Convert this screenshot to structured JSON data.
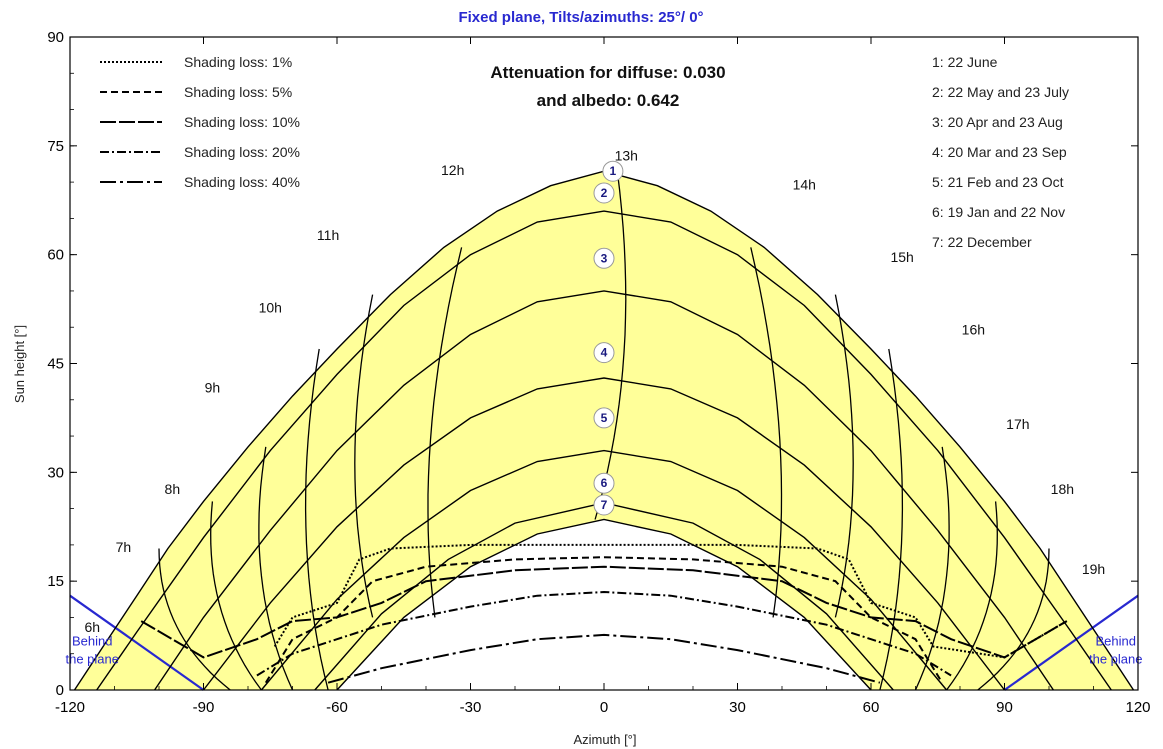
{
  "chart_data": {
    "type": "line",
    "title": "Fixed plane, Tilts/azimuths: 25°/ 0°",
    "xlabel": "Azimuth [°]",
    "ylabel": "Sun height [°]",
    "xlim": [
      -120,
      120
    ],
    "ylim": [
      0,
      90
    ],
    "x_ticks": [
      "-120",
      "-90",
      "-60",
      "-30",
      "0",
      "30",
      "60",
      "90",
      "120"
    ],
    "y_ticks": [
      "0",
      "15",
      "30",
      "45",
      "60",
      "75",
      "90"
    ],
    "annotation": [
      "Attenuation for diffuse: 0.030",
      "and albedo: 0.642"
    ],
    "legend": {
      "placement": "top-left",
      "items": [
        {
          "label": "Shading loss: 1%",
          "dash": "2,2"
        },
        {
          "label": "Shading loss: 5%",
          "dash": "7,4"
        },
        {
          "label": "Shading loss: 10%",
          "dash": "16,3"
        },
        {
          "label": "Shading loss: 20%",
          "dash": "9,3,2,3"
        },
        {
          "label": "Shading loss: 40%",
          "dash": "16,4,3,4"
        }
      ]
    },
    "date_legend": {
      "placement": "top-right",
      "items": [
        "1: 22 June",
        "2: 22 May and 23 July",
        "3: 20 Apr and 23 Aug",
        "4: 20 Mar and 23 Sep",
        "5: 21 Feb and 23 Oct",
        "6: 19 Jan and 22 Nov",
        "7: 22 December"
      ]
    },
    "sun_paths": [
      {
        "marker": "1",
        "x": [
          -119,
          -112,
          -105,
          -98,
          -90,
          -80,
          -70,
          -60,
          -48,
          -36,
          -24,
          -12,
          0,
          12,
          24,
          36,
          48,
          60,
          70,
          80,
          90,
          98,
          105,
          112,
          119
        ],
        "y": [
          0,
          6.5,
          13,
          19.5,
          26,
          33.5,
          40.5,
          47,
          54.5,
          61,
          66,
          69.5,
          71.5,
          69.5,
          66,
          61,
          54.5,
          47,
          40.5,
          33.5,
          26,
          19.5,
          13,
          6.5,
          0
        ]
      },
      {
        "marker": "2",
        "x": [
          -114,
          -105,
          -90,
          -75,
          -60,
          -45,
          -30,
          -15,
          0,
          15,
          30,
          45,
          60,
          75,
          90,
          105,
          114
        ],
        "y": [
          0,
          8,
          21,
          33,
          43.5,
          53,
          60,
          64.5,
          66,
          64.5,
          60,
          53,
          43.5,
          33,
          21,
          8,
          0
        ]
      },
      {
        "marker": "3",
        "x": [
          -101,
          -90,
          -75,
          -60,
          -45,
          -30,
          -15,
          0,
          15,
          30,
          45,
          60,
          75,
          90,
          101
        ],
        "y": [
          0,
          10,
          22,
          33,
          42,
          49,
          53.5,
          55,
          53.5,
          49,
          42,
          33,
          22,
          10,
          0
        ]
      },
      {
        "marker": "4",
        "x": [
          -90,
          -75,
          -60,
          -45,
          -30,
          -15,
          0,
          15,
          30,
          45,
          60,
          75,
          90
        ],
        "y": [
          0,
          12,
          22.5,
          31,
          37.5,
          41.5,
          43,
          41.5,
          37.5,
          31,
          22.5,
          12,
          0
        ]
      },
      {
        "marker": "5",
        "x": [
          -77,
          -60,
          -45,
          -30,
          -15,
          0,
          15,
          30,
          45,
          60,
          77
        ],
        "y": [
          0,
          12.5,
          21,
          27.5,
          31.5,
          33,
          31.5,
          27.5,
          21,
          12.5,
          0
        ]
      },
      {
        "marker": "6",
        "x": [
          -65,
          -50,
          -35,
          -20,
          0,
          20,
          35,
          50,
          65
        ],
        "y": [
          0,
          10.5,
          18,
          23,
          25.8,
          23,
          18,
          10.5,
          0
        ]
      },
      {
        "marker": "7",
        "x": [
          -60,
          -45,
          -30,
          -15,
          0,
          15,
          30,
          45,
          60
        ],
        "y": [
          0,
          10,
          17,
          21.5,
          23.5,
          21.5,
          17,
          10,
          0
        ]
      }
    ],
    "markers": [
      {
        "label": "1",
        "x": 2,
        "y": 71.5
      },
      {
        "label": "2",
        "x": 0,
        "y": 68.5
      },
      {
        "label": "3",
        "x": 0,
        "y": 59.5
      },
      {
        "label": "4",
        "x": 0,
        "y": 46.5
      },
      {
        "label": "5",
        "x": 0,
        "y": 37.5
      },
      {
        "label": "6",
        "x": 0,
        "y": 28.5
      },
      {
        "label": "7",
        "x": 0,
        "y": 25.5
      }
    ],
    "hour_labels": [
      {
        "label": "6h",
        "x": -115,
        "y": 8
      },
      {
        "label": "7h",
        "x": -108,
        "y": 19
      },
      {
        "label": "8h",
        "x": -97,
        "y": 27
      },
      {
        "label": "9h",
        "x": -88,
        "y": 41
      },
      {
        "label": "10h",
        "x": -75,
        "y": 52
      },
      {
        "label": "11h",
        "x": -62,
        "y": 62
      },
      {
        "label": "12h",
        "x": -34,
        "y": 71
      },
      {
        "label": "13h",
        "x": 5,
        "y": 73
      },
      {
        "label": "14h",
        "x": 45,
        "y": 69
      },
      {
        "label": "15h",
        "x": 67,
        "y": 59
      },
      {
        "label": "16h",
        "x": 83,
        "y": 49
      },
      {
        "label": "17h",
        "x": 93,
        "y": 36
      },
      {
        "label": "18h",
        "x": 103,
        "y": 27
      },
      {
        "label": "19h",
        "x": 110,
        "y": 16
      }
    ],
    "behind_plane_label": [
      "Behind",
      "the plane"
    ],
    "shading_loss_curves": [
      {
        "loss": "1%",
        "dash": "2,2",
        "x": [
          -74,
          -70,
          -60,
          -55,
          -48,
          -30,
          0,
          30,
          48,
          55,
          60,
          70,
          74,
          90,
          104
        ],
        "y": [
          6,
          10,
          12,
          18,
          19.5,
          20,
          20,
          20,
          19.5,
          18,
          12,
          10,
          6,
          4.5,
          9.5
        ]
      },
      {
        "loss": "5%",
        "dash": "7,4",
        "x": [
          -76,
          -70,
          -60,
          -52,
          -40,
          -20,
          0,
          20,
          40,
          52,
          60,
          70,
          76
        ],
        "y": [
          1,
          7,
          10,
          15,
          17,
          18,
          18.3,
          18,
          17,
          15,
          10,
          7,
          1
        ]
      },
      {
        "loss": "10%",
        "dash": "16,3",
        "x": [
          -104,
          -90,
          -78,
          -70,
          -60,
          -50,
          -40,
          -20,
          0,
          20,
          40,
          50,
          60,
          70,
          78,
          90,
          104
        ],
        "y": [
          9.5,
          4.5,
          7,
          9.5,
          10,
          12,
          15,
          16.5,
          17,
          16.5,
          15,
          12,
          10,
          9.5,
          7,
          4.5,
          9.5
        ]
      },
      {
        "loss": "20%",
        "dash": "9,3,2,3",
        "x": [
          -78,
          -70,
          -60,
          -50,
          -30,
          -15,
          0,
          15,
          30,
          50,
          60,
          70,
          78
        ],
        "y": [
          2,
          5,
          7,
          9,
          11.5,
          13,
          13.5,
          13,
          11.5,
          9,
          7,
          5,
          2
        ]
      },
      {
        "loss": "40%",
        "dash": "16,4,3,4",
        "x": [
          -62,
          -50,
          -30,
          -15,
          0,
          15,
          30,
          50,
          62
        ],
        "y": [
          1,
          3,
          5.5,
          7,
          7.6,
          7,
          5.5,
          3,
          1
        ]
      }
    ],
    "colors": {
      "fill": "#ffff99",
      "plane_line": "#2828d0",
      "title": "#2828d0",
      "curve": "#000000"
    },
    "grid": false
  }
}
